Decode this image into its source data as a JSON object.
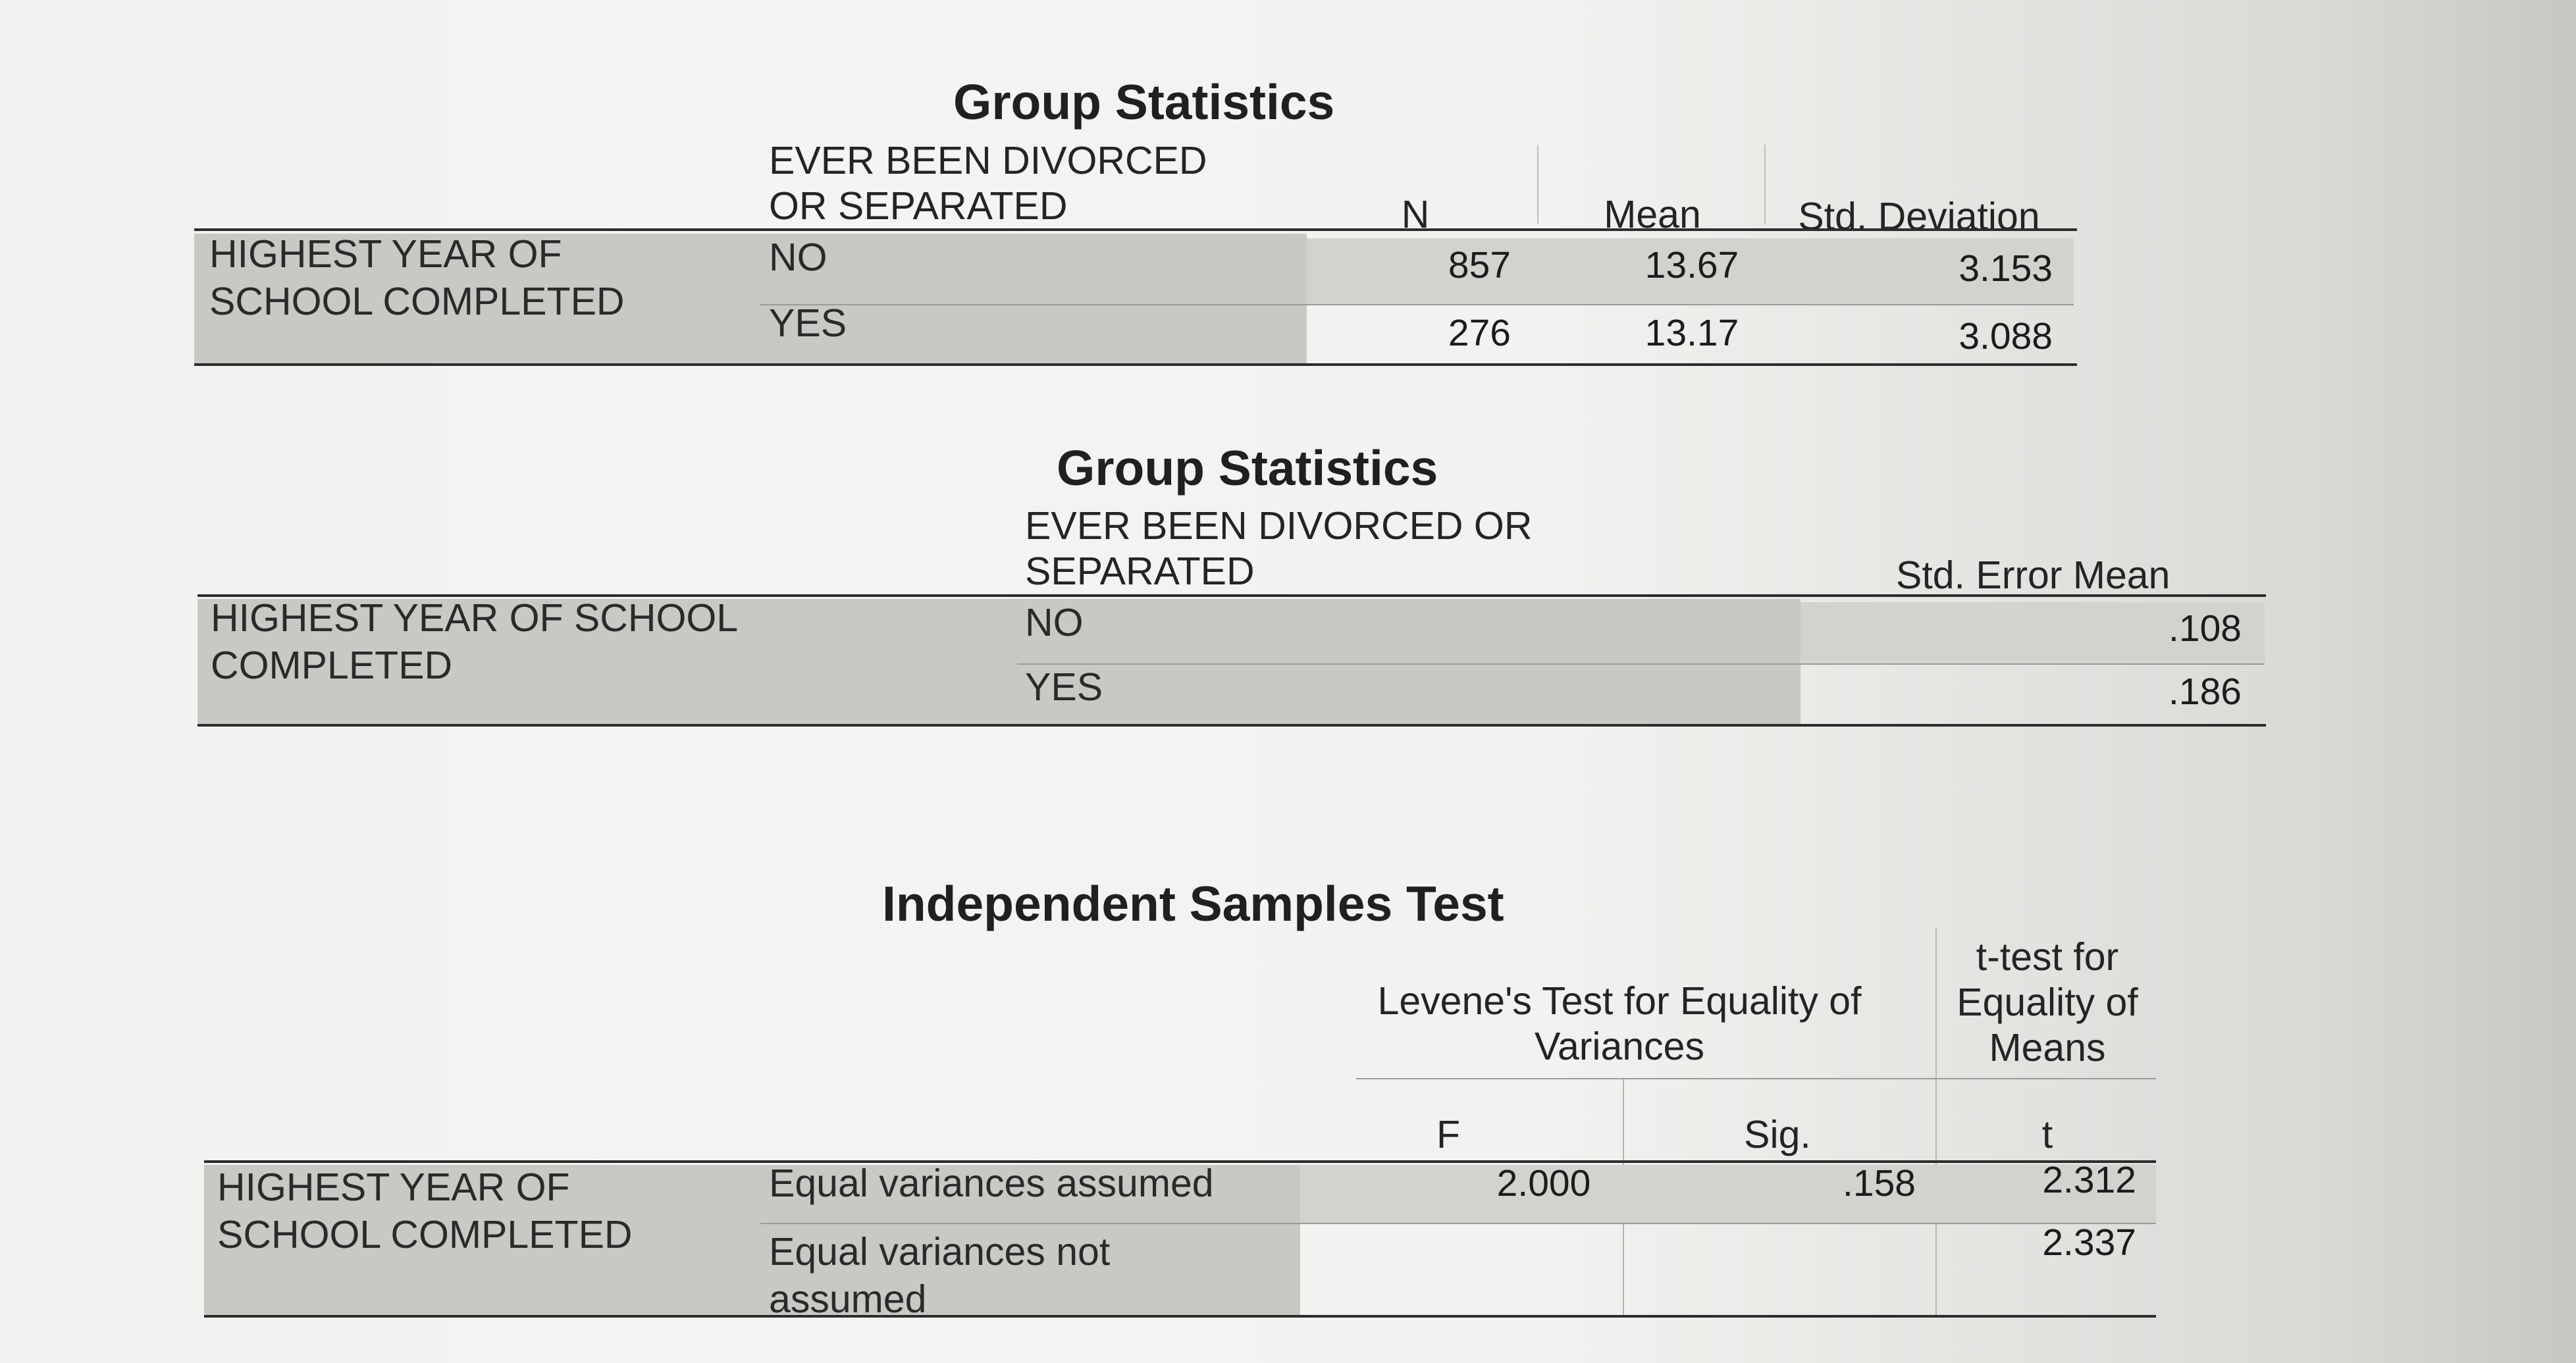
{
  "table1": {
    "title": "Group Statistics",
    "group_header": [
      "EVER BEEN DIVORCED",
      "OR SEPARATED"
    ],
    "columns": [
      "N",
      "Mean",
      "Std. Deviation"
    ],
    "row_label": [
      "HIGHEST YEAR OF",
      "SCHOOL COMPLETED"
    ],
    "rows": [
      {
        "group": "NO",
        "n": "857",
        "mean": "13.67",
        "sd": "3.153"
      },
      {
        "group": "YES",
        "n": "276",
        "mean": "13.17",
        "sd": "3.088"
      }
    ]
  },
  "table2": {
    "title": "Group Statistics",
    "group_header": [
      "EVER BEEN DIVORCED OR",
      "SEPARATED"
    ],
    "columns": [
      "Std. Error Mean"
    ],
    "row_label": [
      "HIGHEST YEAR OF SCHOOL",
      "COMPLETED"
    ],
    "rows": [
      {
        "group": "NO",
        "se": ".108"
      },
      {
        "group": "YES",
        "se": ".186"
      }
    ]
  },
  "table3": {
    "title": "Independent Samples Test",
    "levene_header": [
      "Levene's Test for Equality of",
      "Variances"
    ],
    "ttest_header": [
      "t-test for",
      "Equality of",
      "Means"
    ],
    "columns": [
      "F",
      "Sig.",
      "t"
    ],
    "row_label": [
      "HIGHEST YEAR OF",
      "SCHOOL COMPLETED"
    ],
    "rows": [
      {
        "label": [
          "Equal variances assumed"
        ],
        "f": "2.000",
        "sig": ".158",
        "t": "2.312"
      },
      {
        "label": [
          "Equal variances not",
          "assumed"
        ],
        "f": "",
        "sig": "",
        "t": "2.337"
      }
    ]
  }
}
